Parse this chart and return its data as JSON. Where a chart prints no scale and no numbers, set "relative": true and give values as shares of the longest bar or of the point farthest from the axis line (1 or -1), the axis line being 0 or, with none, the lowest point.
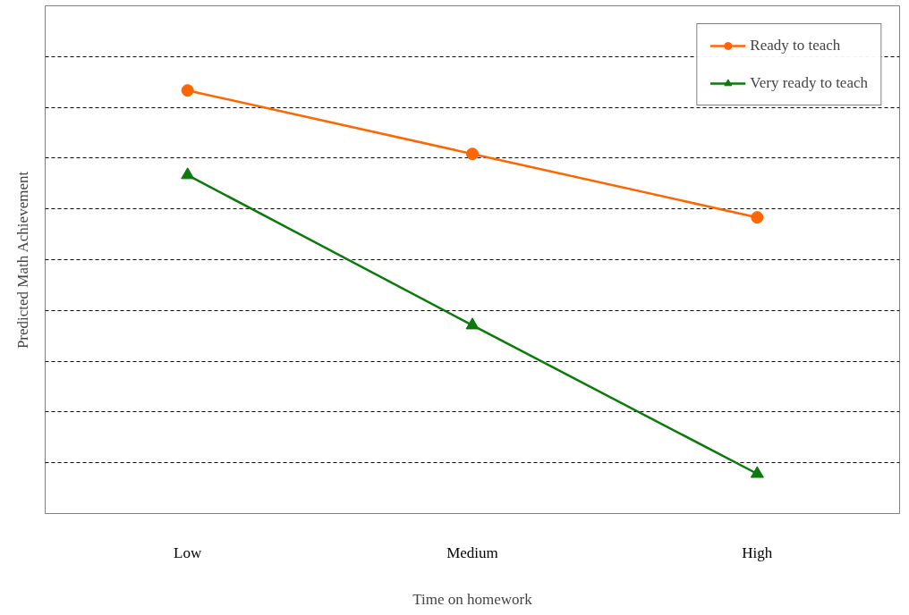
{
  "chart_data": {
    "type": "line",
    "relative": true,
    "xlabel": "Time on homework",
    "ylabel": "Predicted Math Achievement",
    "categories": [
      "Low",
      "Medium",
      "High"
    ],
    "grid": "y",
    "legend": "top right",
    "line_style": "solid",
    "series": [
      {
        "name": "Ready to teach",
        "color": "#ff6600",
        "marker": "circle",
        "values": [
          1,
          0.85,
          0.7
        ]
      },
      {
        "name": "Very ready to teach",
        "color": "#0a7a0a",
        "marker": "triangle",
        "values": [
          0.8,
          0.445,
          0.094
        ]
      }
    ]
  }
}
